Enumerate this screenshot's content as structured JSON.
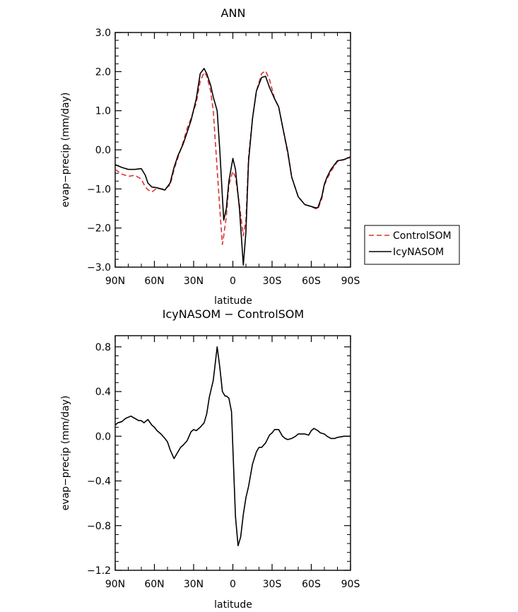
{
  "colors": {
    "control": "#e03030",
    "icy": "#000000",
    "diff": "#000000"
  },
  "chart_data": [
    {
      "type": "line",
      "title": "ANN",
      "xlabel": "latitude",
      "ylabel": "evap−precip (mm/day)",
      "xlim": [
        90,
        -90
      ],
      "ylim": [
        -3.0,
        3.0
      ],
      "yticks": [
        -3.0,
        -2.0,
        -1.0,
        0.0,
        1.0,
        2.0,
        3.0
      ],
      "ytick_labels": [
        "−3.0",
        "−2.0",
        "−1.0",
        "0.0",
        "1.0",
        "2.0",
        "3.0"
      ],
      "xticks": [
        90,
        60,
        30,
        0,
        -30,
        -60,
        -90
      ],
      "xtick_labels": [
        "90N",
        "60N",
        "30N",
        "0",
        "30S",
        "60S",
        "90S"
      ],
      "legend": {
        "placement": "outside-right",
        "entries": [
          {
            "name": "ControlSOM",
            "style": "dashed",
            "color": "#e03030"
          },
          {
            "name": "IcyNASOM",
            "style": "solid",
            "color": "#000000"
          }
        ]
      },
      "series": [
        {
          "name": "ControlSOM",
          "style": "dashed",
          "color": "#e03030",
          "x": [
            90,
            85,
            80,
            75,
            70,
            67,
            65,
            62,
            58,
            55,
            52,
            48,
            45,
            42,
            38,
            35,
            32,
            28,
            25,
            22,
            20,
            17,
            15,
            12,
            10,
            8,
            7,
            5,
            3,
            0,
            -2,
            -5,
            -8,
            -10,
            -12,
            -15,
            -18,
            -22,
            -25,
            -28,
            -32,
            -35,
            -38,
            -42,
            -45,
            -50,
            -55,
            -60,
            -63,
            -65,
            -68,
            -70,
            -72,
            -75,
            -80,
            -85,
            -90
          ],
          "y": [
            -0.5,
            -0.62,
            -0.68,
            -0.65,
            -0.75,
            -0.95,
            -1.02,
            -1.08,
            -0.98,
            -1.0,
            -1.0,
            -0.9,
            -0.5,
            -0.2,
            0.2,
            0.55,
            0.8,
            1.2,
            1.75,
            1.98,
            1.9,
            1.5,
            1.0,
            -0.5,
            -1.5,
            -2.42,
            -2.2,
            -1.7,
            -0.9,
            -0.55,
            -0.7,
            -1.4,
            -2.2,
            -1.8,
            -0.2,
            0.8,
            1.5,
            1.95,
            2.02,
            1.8,
            1.3,
            1.1,
            0.6,
            -0.1,
            -0.7,
            -1.2,
            -1.4,
            -1.45,
            -1.5,
            -1.52,
            -1.25,
            -0.9,
            -0.75,
            -0.55,
            -0.3,
            -0.25,
            -0.2
          ]
        },
        {
          "name": "IcyNASOM",
          "style": "solid",
          "color": "#000000",
          "x": [
            90,
            85,
            80,
            75,
            70,
            67,
            65,
            62,
            58,
            55,
            52,
            48,
            45,
            42,
            38,
            35,
            32,
            28,
            25,
            22,
            20,
            17,
            15,
            12,
            10,
            8,
            7,
            5,
            3,
            0,
            -2,
            -5,
            -8,
            -10,
            -12,
            -15,
            -18,
            -22,
            -25,
            -28,
            -32,
            -35,
            -38,
            -42,
            -45,
            -50,
            -55,
            -60,
            -63,
            -65,
            -68,
            -70,
            -72,
            -75,
            -80,
            -85,
            -90
          ],
          "y": [
            -0.38,
            -0.45,
            -0.5,
            -0.5,
            -0.48,
            -0.65,
            -0.85,
            -0.95,
            -0.97,
            -1.0,
            -1.03,
            -0.85,
            -0.45,
            -0.15,
            0.15,
            0.45,
            0.75,
            1.3,
            1.95,
            2.08,
            1.95,
            1.65,
            1.35,
            1.0,
            0.0,
            -1.2,
            -1.8,
            -1.5,
            -0.8,
            -0.22,
            -0.5,
            -1.5,
            -2.95,
            -2.1,
            -0.3,
            0.8,
            1.5,
            1.85,
            1.88,
            1.6,
            1.3,
            1.1,
            0.6,
            -0.05,
            -0.7,
            -1.2,
            -1.4,
            -1.45,
            -1.48,
            -1.48,
            -1.2,
            -0.88,
            -0.7,
            -0.5,
            -0.28,
            -0.25,
            -0.18
          ]
        }
      ]
    },
    {
      "type": "line",
      "title": "IcyNASOM − ControlSOM",
      "xlabel": "latitude",
      "ylabel": "evap−precip (mm/day)",
      "xlim": [
        90,
        -90
      ],
      "ylim": [
        -1.2,
        0.9
      ],
      "yticks": [
        -1.2,
        -0.8,
        -0.4,
        0.0,
        0.4,
        0.8
      ],
      "ytick_labels": [
        "−1.2",
        "−0.8",
        "−0.4",
        "0.0",
        "0.4",
        "0.8"
      ],
      "xticks": [
        90,
        60,
        30,
        0,
        -30,
        -60,
        -90
      ],
      "xtick_labels": [
        "90N",
        "60N",
        "30N",
        "0",
        "30S",
        "60S",
        "90S"
      ],
      "series": [
        {
          "style": "solid",
          "color": "#000000",
          "x": [
            90,
            88,
            85,
            82,
            78,
            75,
            72,
            70,
            68,
            65,
            62,
            60,
            58,
            55,
            52,
            50,
            48,
            45,
            42,
            40,
            38,
            35,
            32,
            30,
            28,
            25,
            22,
            20,
            18,
            15,
            12,
            10,
            8,
            6,
            5,
            3,
            1,
            0,
            -2,
            -4,
            -6,
            -8,
            -10,
            -12,
            -15,
            -18,
            -20,
            -22,
            -25,
            -28,
            -30,
            -32,
            -35,
            -38,
            -40,
            -42,
            -45,
            -48,
            -50,
            -55,
            -58,
            -60,
            -62,
            -65,
            -67,
            -70,
            -72,
            -75,
            -78,
            -80,
            -85,
            -90
          ],
          "y": [
            0.1,
            0.12,
            0.13,
            0.16,
            0.18,
            0.16,
            0.14,
            0.14,
            0.12,
            0.15,
            0.1,
            0.08,
            0.05,
            0.02,
            -0.02,
            -0.05,
            -0.12,
            -0.2,
            -0.14,
            -0.1,
            -0.08,
            -0.04,
            0.04,
            0.06,
            0.05,
            0.08,
            0.12,
            0.2,
            0.35,
            0.5,
            0.8,
            0.62,
            0.4,
            0.36,
            0.36,
            0.34,
            0.22,
            -0.1,
            -0.72,
            -0.98,
            -0.9,
            -0.7,
            -0.55,
            -0.45,
            -0.25,
            -0.14,
            -0.1,
            -0.1,
            -0.06,
            0.01,
            0.03,
            0.06,
            0.06,
            0.0,
            -0.02,
            -0.03,
            -0.02,
            0.0,
            0.02,
            0.02,
            0.01,
            0.05,
            0.07,
            0.05,
            0.03,
            0.02,
            0.0,
            -0.02,
            -0.02,
            -0.01,
            0.0,
            0.0
          ]
        }
      ]
    }
  ]
}
